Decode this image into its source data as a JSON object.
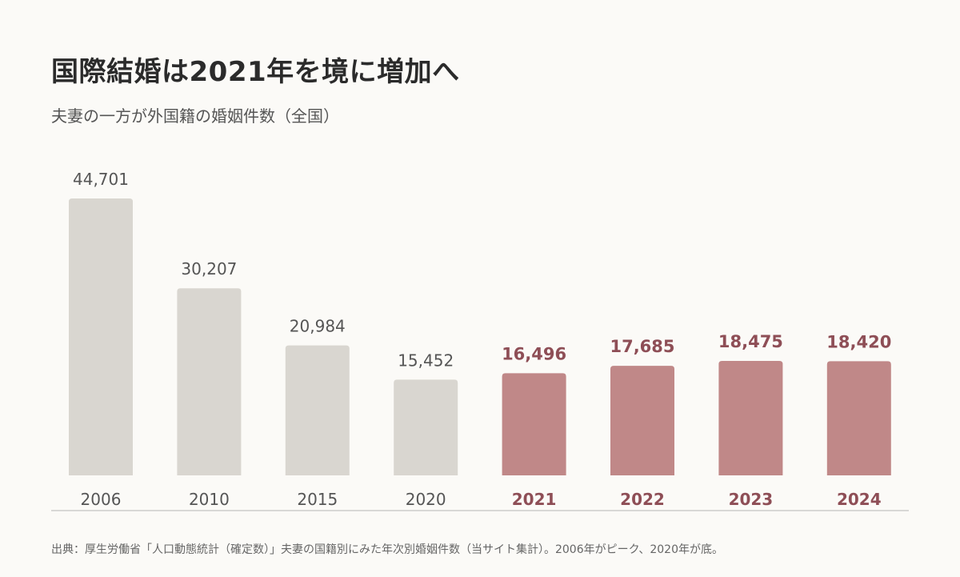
{
  "header": {
    "title": "国際結婚は2021年を境に増加へ",
    "subtitle": "夫妻の一方が外国籍の婚姻件数（全国）"
  },
  "footer": {
    "note": "出典：厚生労働省「人口動態統計（確定数）」夫妻の国籍別にみた年次別婚姻件数（当サイト集計）。2006年がピーク、2020年が底。"
  },
  "colors": {
    "base": "#d9d6d0",
    "highlight": "#c08888",
    "base_label": "#555555",
    "highlight_label": "#8e4e56",
    "axis": "#cccccc",
    "background": "#fbfaf7"
  },
  "chart_data": {
    "type": "bar",
    "title": "国際結婚は2021年を境に増加へ",
    "subtitle": "夫妻の一方が外国籍の婚姻件数（全国）",
    "categories": [
      "2006",
      "2010",
      "2015",
      "2020",
      "2021",
      "2022",
      "2023",
      "2024"
    ],
    "values": [
      44701,
      30207,
      20984,
      15452,
      16496,
      17685,
      18475,
      18420
    ],
    "value_labels": [
      "44,701",
      "30,207",
      "20,984",
      "15,452",
      "16,496",
      "17,685",
      "18,475",
      "18,420"
    ],
    "highlighted": [
      false,
      false,
      false,
      false,
      true,
      true,
      true,
      true
    ],
    "xlabel": "",
    "ylabel": "",
    "ylim": [
      0,
      44701
    ],
    "grid": false,
    "legend": "none"
  }
}
